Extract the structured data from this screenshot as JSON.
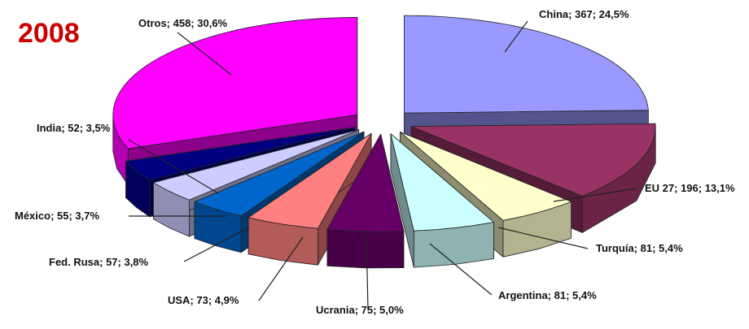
{
  "chart_data": {
    "type": "pie",
    "title": "2008",
    "title_color": "#cc0000",
    "categories": [
      "China",
      "EU 27",
      "Turquía",
      "Argentina",
      "Ucrania",
      "USA",
      "Fed. Rusa",
      "México",
      "India",
      "Otros"
    ],
    "values": [
      367,
      196,
      81,
      81,
      75,
      73,
      57,
      55,
      52,
      458
    ],
    "percent_labels": [
      "24,5%",
      "13,1%",
      "5,4%",
      "5,4%",
      "5,0%",
      "4,9%",
      "3,8%",
      "3,7%",
      "3,5%",
      "30,6%"
    ],
    "labels": [
      "China; 367; 24,5%",
      "EU 27; 196; 13,1%",
      "Turquía; 81; 5,4%",
      "Argentina; 81; 5,4%",
      "Ucrania; 75; 5,0%",
      "USA; 73; 4,9%",
      "Fed. Rusa; 57; 3,8%",
      "México; 55; 3,7%",
      "India; 52; 3,5%",
      "Otros; 458; 30,6%"
    ],
    "colors": [
      "#9999ff",
      "#993366",
      "#ffffcc",
      "#ccffff",
      "#660066",
      "#ff8080",
      "#0066cc",
      "#ccccff",
      "#000080",
      "#ff00ff"
    ],
    "exploded": true,
    "three_d": true
  }
}
